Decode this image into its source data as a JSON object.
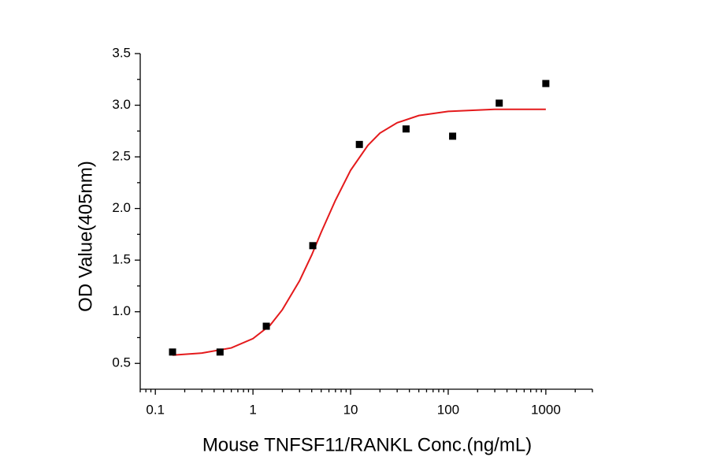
{
  "chart_data": {
    "type": "scatter",
    "x_label": "Mouse TNFSF11/RANKL Conc.(ng/mL)",
    "y_label": "OD Value(405nm)",
    "xscale": "log",
    "xlim": [
      0.07,
      3000
    ],
    "xticks": [
      0.1,
      1,
      10,
      100,
      1000
    ],
    "ylim": [
      0.25,
      3.5
    ],
    "yticks": [
      0.5,
      {
        "value": 1.0,
        "label": "1.0"
      },
      1.5,
      {
        "value": 2.0,
        "label": "2.0"
      },
      2.5,
      {
        "value": 3.0,
        "label": "3.0"
      },
      3.5
    ],
    "grid": false,
    "series": [
      {
        "type": "scatter",
        "color": "#000000",
        "x": [
          0.15,
          0.46,
          1.37,
          4.1,
          12.3,
          37,
          111,
          333,
          1000
        ],
        "values": [
          0.61,
          0.61,
          0.86,
          1.64,
          2.62,
          2.77,
          2.7,
          3.02,
          3.21
        ]
      },
      {
        "type": "line",
        "color": "#e41a1c",
        "x": [
          0.15,
          0.3,
          0.6,
          1,
          1.5,
          2,
          3,
          4,
          5,
          7,
          10,
          15,
          20,
          30,
          50,
          100,
          300,
          1000
        ],
        "values": [
          0.58,
          0.6,
          0.65,
          0.74,
          0.87,
          1.02,
          1.3,
          1.55,
          1.77,
          2.08,
          2.37,
          2.61,
          2.73,
          2.83,
          2.9,
          2.94,
          2.96,
          2.96
        ]
      }
    ]
  }
}
